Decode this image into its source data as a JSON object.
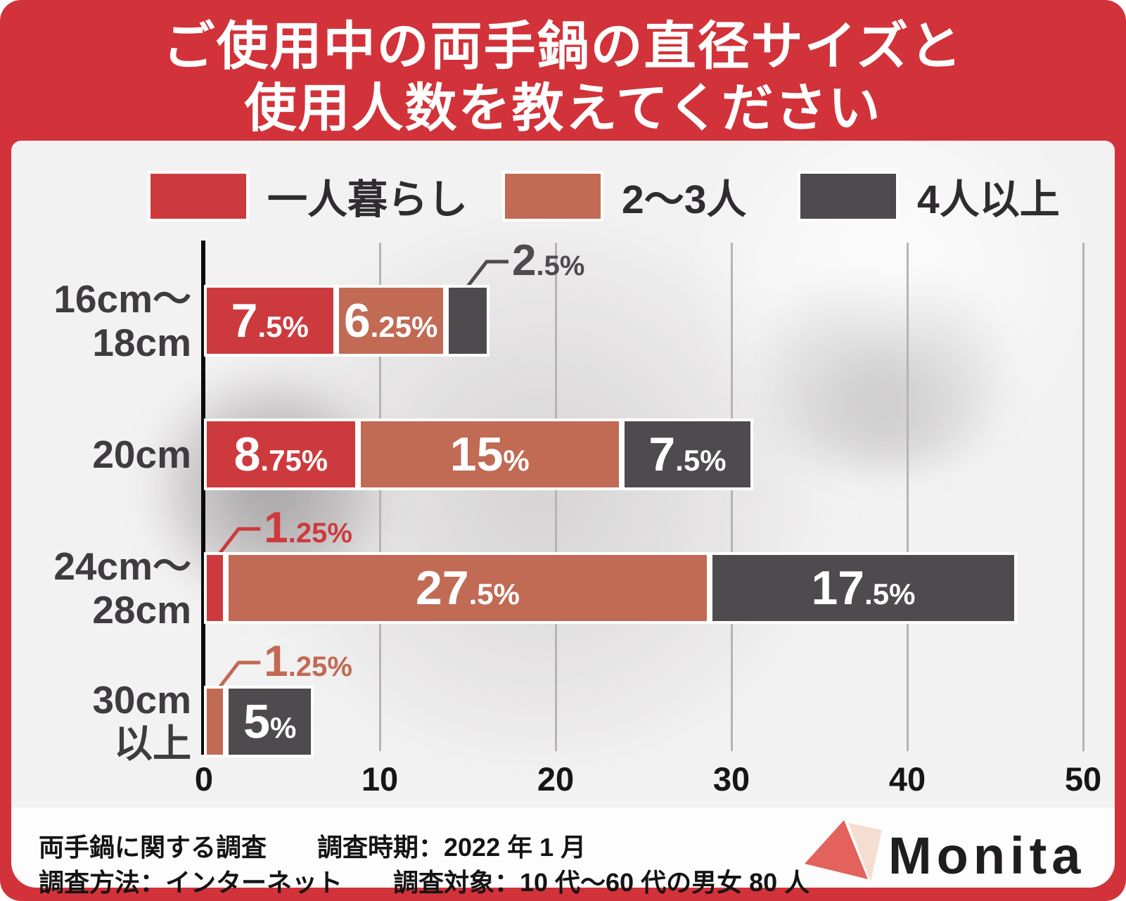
{
  "title": {
    "line1": "ご使用中の両手鍋の直径サイズと",
    "line2": "使用人数を教えてください"
  },
  "colors": {
    "frame_red": "#d23239",
    "chart_bg": "#f3f2f2",
    "series_red": "#cd3a3d",
    "series_salmon": "#c16a54",
    "series_dark": "#4e4a4e",
    "axis_black": "#0b0b0b",
    "gridline_gray": "#b5b3b4",
    "row_label_gray": "#3e3c3f"
  },
  "chart_data": {
    "type": "bar",
    "orientation": "horizontal",
    "stacked": true,
    "unit": "%",
    "xlim": [
      0,
      50
    ],
    "ticks": [
      "0",
      "10",
      "20",
      "30",
      "40",
      "50"
    ],
    "tick_values": [
      0,
      10,
      20,
      30,
      40,
      50
    ],
    "grid": true,
    "legend_position": "top",
    "categories": [
      "16cm〜18cm",
      "20cm",
      "24cm〜28cm",
      "30cm以上"
    ],
    "series": [
      {
        "name": "一人暮らし",
        "color": "#cd3a3d",
        "values": [
          7.5,
          8.75,
          1.25,
          0
        ]
      },
      {
        "name": "2〜3人",
        "color": "#c16a54",
        "values": [
          6.25,
          15,
          27.5,
          1.25
        ]
      },
      {
        "name": "4人以上",
        "color": "#4e4a4e",
        "values": [
          2.5,
          7.5,
          17.5,
          5
        ]
      }
    ],
    "rows": [
      {
        "label_lines": [
          "16cm〜",
          "18cm"
        ],
        "segments": [
          {
            "series": 0,
            "value": 7.5,
            "main": "7",
            "frac": ".5%",
            "callout": false
          },
          {
            "series": 1,
            "value": 6.25,
            "main": "6",
            "frac": ".25%",
            "callout": false
          },
          {
            "series": 2,
            "value": 2.5,
            "main": "2",
            "frac": ".5%",
            "callout": true
          }
        ]
      },
      {
        "label_lines": [
          "20cm"
        ],
        "segments": [
          {
            "series": 0,
            "value": 8.75,
            "main": "8",
            "frac": ".75%",
            "callout": false
          },
          {
            "series": 1,
            "value": 15,
            "main": "15",
            "frac": "%",
            "callout": false
          },
          {
            "series": 2,
            "value": 7.5,
            "main": "7",
            "frac": ".5%",
            "callout": false
          }
        ]
      },
      {
        "label_lines": [
          "24cm〜",
          "28cm"
        ],
        "segments": [
          {
            "series": 0,
            "value": 1.25,
            "main": "1",
            "frac": ".25%",
            "callout": true
          },
          {
            "series": 1,
            "value": 27.5,
            "main": "27",
            "frac": ".5%",
            "callout": false
          },
          {
            "series": 2,
            "value": 17.5,
            "main": "17",
            "frac": ".5%",
            "callout": false
          }
        ]
      },
      {
        "label_lines": [
          "30cm",
          "以上"
        ],
        "segments": [
          {
            "series": 1,
            "value": 1.25,
            "main": "1",
            "frac": ".25%",
            "callout": true
          },
          {
            "series": 2,
            "value": 5,
            "main": "5",
            "frac": "%",
            "callout": false
          }
        ]
      }
    ]
  },
  "footer": {
    "line1": "両手鍋に関する調査　　調査時期：2022 年 1 月",
    "line2": "調査方法：インターネット　　調査対象：10 代〜60 代の男女 80 人",
    "brand": "Monita"
  }
}
